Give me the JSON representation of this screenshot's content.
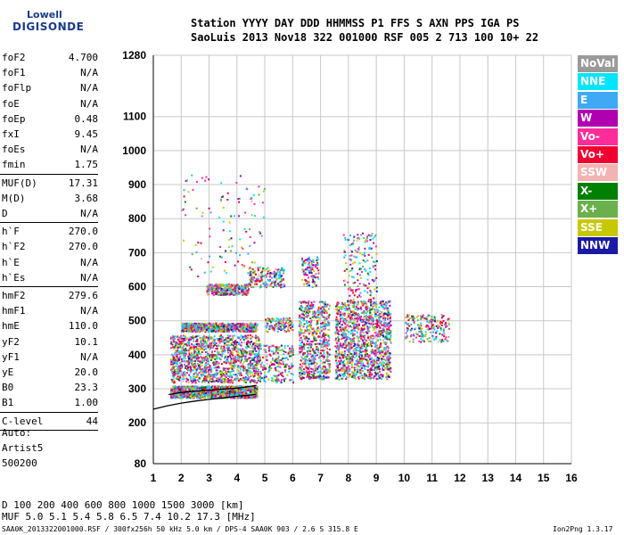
{
  "logo": {
    "top": "Lowell",
    "bottom": "DIGISONDE"
  },
  "header": {
    "line1": "Station YYYY DAY   DDD HHMMSS P1  FFS S AXN PPS IGA PS",
    "line2": "SaoLuis 2013 Nov18 322 001000 RSF 005 2 713 100 10+ 22"
  },
  "params": [
    {
      "group": 1,
      "name": "foF2",
      "value": "4.700"
    },
    {
      "group": 1,
      "name": "foF1",
      "value": "N/A"
    },
    {
      "group": 1,
      "name": "foFlp",
      "value": "N/A"
    },
    {
      "group": 1,
      "name": "foE",
      "value": "N/A"
    },
    {
      "group": 1,
      "name": "foEp",
      "value": "0.48"
    },
    {
      "group": 1,
      "name": "fxI",
      "value": "9.45"
    },
    {
      "group": 1,
      "name": "foEs",
      "value": "N/A"
    },
    {
      "group": 1,
      "name": "fmin",
      "value": "1.75"
    },
    {
      "group": 2,
      "name": "MUF(D)",
      "value": "17.31"
    },
    {
      "group": 2,
      "name": "M(D)",
      "value": "3.68"
    },
    {
      "group": 2,
      "name": "D",
      "value": "N/A"
    },
    {
      "group": 3,
      "name": "h`F",
      "value": "270.0"
    },
    {
      "group": 3,
      "name": "h`F2",
      "value": "270.0"
    },
    {
      "group": 3,
      "name": "h`E",
      "value": "N/A"
    },
    {
      "group": 3,
      "name": "h`Es",
      "value": "N/A"
    },
    {
      "group": 4,
      "name": "hmF2",
      "value": "279.6"
    },
    {
      "group": 4,
      "name": "hmF1",
      "value": "N/A"
    },
    {
      "group": 4,
      "name": "hmE",
      "value": "110.0"
    },
    {
      "group": 4,
      "name": "yF2",
      "value": "10.1"
    },
    {
      "group": 4,
      "name": "yF1",
      "value": "N/A"
    },
    {
      "group": 4,
      "name": "yE",
      "value": "20.0"
    },
    {
      "group": 4,
      "name": "B0",
      "value": "23.3"
    },
    {
      "group": 4,
      "name": "B1",
      "value": "1.00"
    },
    {
      "group": 5,
      "name": "C-level",
      "value": "44"
    }
  ],
  "auto": {
    "line1": "Auto:",
    "line2": "Artist5",
    "line3": "500200"
  },
  "legend": [
    {
      "label": "NoVal",
      "color": "#9a9a9a"
    },
    {
      "label": "NNE",
      "color": "#00e5ff"
    },
    {
      "label": "E",
      "color": "#3fa9f5"
    },
    {
      "label": "W",
      "color": "#b000b0"
    },
    {
      "label": "Vo-",
      "color": "#ff2d9a"
    },
    {
      "label": "Vo+",
      "color": "#f00030"
    },
    {
      "label": "SSW",
      "color": "#f4b3b3"
    },
    {
      "label": "X-",
      "color": "#008000"
    },
    {
      "label": "X+",
      "color": "#6ab04c"
    },
    {
      "label": "SSE",
      "color": "#c8c800"
    },
    {
      "label": "NNW",
      "color": "#1a1aa6"
    }
  ],
  "footer": {
    "d_row": "D    100  200  400  600  800 1000 1500 3000 [km]",
    "muf_row": "MUF  5.0  5.1  5.4  5.8  6.5  7.4 10.2 17.3 [MHz]",
    "file_info": "SAA0K_2013322001000.RSF / 300fx256h 50 kHz 5.0 km / DPS-4 SAA0K 903 / 2.6 S 315.8 E",
    "version": "Ion2Png 1.3.17"
  },
  "chart_data": {
    "type": "scatter",
    "title": "",
    "xlabel": "",
    "ylabel": "",
    "xlim": [
      1,
      16
    ],
    "ylim": [
      80,
      1280
    ],
    "x_ticks": [
      1,
      2,
      3,
      4,
      5,
      6,
      7,
      8,
      9,
      10,
      11,
      12,
      13,
      14,
      15,
      16
    ],
    "y_ticks": [
      80,
      200,
      300,
      400,
      500,
      600,
      700,
      800,
      900,
      1000,
      1100,
      1280
    ],
    "grid": true,
    "legend_position": "right",
    "clusters": [
      {
        "x": [
          1.6,
          4.7
        ],
        "y": [
          275,
          310
        ],
        "density": 1400
      },
      {
        "x": [
          1.6,
          4.8
        ],
        "y": [
          320,
          460
        ],
        "density": 1300
      },
      {
        "x": [
          2.0,
          4.7
        ],
        "y": [
          470,
          495
        ],
        "density": 700
      },
      {
        "x": [
          2.9,
          4.4
        ],
        "y": [
          578,
          610
        ],
        "density": 320
      },
      {
        "x": [
          4.4,
          5.7
        ],
        "y": [
          600,
          660
        ],
        "density": 180
      },
      {
        "x": [
          4.8,
          6.0
        ],
        "y": [
          320,
          430
        ],
        "density": 220
      },
      {
        "x": [
          5.0,
          6.0
        ],
        "y": [
          470,
          510
        ],
        "density": 120
      },
      {
        "x": [
          6.2,
          7.3
        ],
        "y": [
          330,
          560
        ],
        "density": 650
      },
      {
        "x": [
          6.3,
          6.9
        ],
        "y": [
          600,
          690
        ],
        "density": 110
      },
      {
        "x": [
          7.5,
          9.5
        ],
        "y": [
          330,
          560
        ],
        "density": 1300
      },
      {
        "x": [
          7.8,
          9.0
        ],
        "y": [
          560,
          760
        ],
        "density": 160
      },
      {
        "x": [
          10.0,
          11.6
        ],
        "y": [
          440,
          520
        ],
        "density": 200
      },
      {
        "x": [
          2.0,
          5.0
        ],
        "y": [
          630,
          930
        ],
        "density": 110
      }
    ],
    "traces": [
      {
        "name": "o-trace",
        "x": [
          1.55,
          2.0,
          2.5,
          3.0,
          3.5,
          4.0,
          4.3,
          4.7
        ],
        "y": [
          283,
          289,
          293,
          296,
          299,
          302,
          305,
          310
        ]
      },
      {
        "name": "x-trace",
        "x": [
          1.0,
          1.5,
          2.0,
          2.5,
          3.0,
          3.5,
          4.0,
          4.4,
          4.7
        ],
        "y": [
          240,
          250,
          258,
          264,
          269,
          273,
          278,
          281,
          284
        ]
      }
    ]
  }
}
